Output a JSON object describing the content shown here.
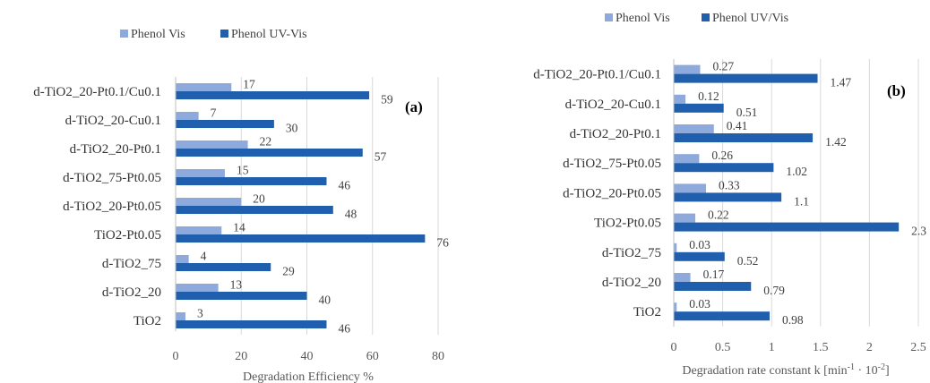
{
  "chart_data": [
    {
      "type": "bar",
      "orientation": "horizontal",
      "panel_label": "(a)",
      "categories": [
        "d-TiO2_20-Pt0.1/Cu0.1",
        "d-TiO2_20-Cu0.1",
        "d-TiO2_20-Pt0.1",
        "d-TiO2_75-Pt0.05",
        "d-TiO2_20-Pt0.05",
        "TiO2-Pt0.05",
        "d-TiO2_75",
        "d-TiO2_20",
        "TiO2"
      ],
      "series": [
        {
          "name": "Phenol Vis",
          "color": "#8ea9db",
          "values": [
            17,
            7,
            22,
            15,
            20,
            14,
            4,
            13,
            3
          ],
          "labels": [
            "17",
            "7",
            "22",
            "15",
            "20",
            "14",
            "4",
            "13",
            "3"
          ]
        },
        {
          "name": "Phenol UV-Vis",
          "color": "#1f5fae",
          "values": [
            59,
            30,
            57,
            46,
            48,
            76,
            29,
            40,
            46
          ],
          "labels": [
            "59",
            "30",
            "57",
            "46",
            "48",
            "76",
            "29",
            "40",
            "46"
          ]
        }
      ],
      "xlim": [
        0,
        80
      ],
      "xticks": [
        0,
        20,
        40,
        60,
        80
      ],
      "xtick_labels": [
        "0",
        "20",
        "40",
        "60",
        "80"
      ],
      "xlabel": "Degradation Efficiency %",
      "legend_position": "top",
      "grid": "vertical"
    },
    {
      "type": "bar",
      "orientation": "horizontal",
      "panel_label": "(b)",
      "categories": [
        "d-TiO2_20-Pt0.1/Cu0.1",
        "d-TiO2_20-Cu0.1",
        "d-TiO2_20-Pt0.1",
        "d-TiO2_75-Pt0.05",
        "d-TiO2_20-Pt0.05",
        "TiO2-Pt0.05",
        "d-TiO2_75",
        "d-TiO2_20",
        "TiO2"
      ],
      "series": [
        {
          "name": "Phenol Vis",
          "color": "#8ea9db",
          "values": [
            0.27,
            0.12,
            0.41,
            0.26,
            0.33,
            0.22,
            0.03,
            0.17,
            0.03
          ],
          "labels": [
            "0.27",
            "0.12",
            "0.41",
            "0.26",
            "0.33",
            "0.22",
            "0.03",
            "0.17",
            "0.03"
          ]
        },
        {
          "name": "Phenol UV/Vis",
          "color": "#1f5fae",
          "values": [
            1.47,
            0.51,
            1.42,
            1.02,
            1.1,
            2.3,
            0.52,
            0.79,
            0.98
          ],
          "labels": [
            "1.47",
            "0.51",
            "1.42",
            "1.02",
            "1.1",
            "2.3",
            "0.52",
            "0.79",
            "0.98"
          ]
        }
      ],
      "xlim": [
        0,
        2.5
      ],
      "xticks": [
        0,
        0.5,
        1,
        1.5,
        2,
        2.5
      ],
      "xtick_labels": [
        "0",
        "0.5",
        "1",
        "1.5",
        "2",
        "2.5"
      ],
      "xlabel": {
        "prefix": "Degradation rate constant k  [min",
        "sup1": "-1",
        "middle": " · 10",
        "sup2": "-2",
        "suffix": "]"
      },
      "legend_position": "top",
      "grid": "vertical"
    }
  ]
}
